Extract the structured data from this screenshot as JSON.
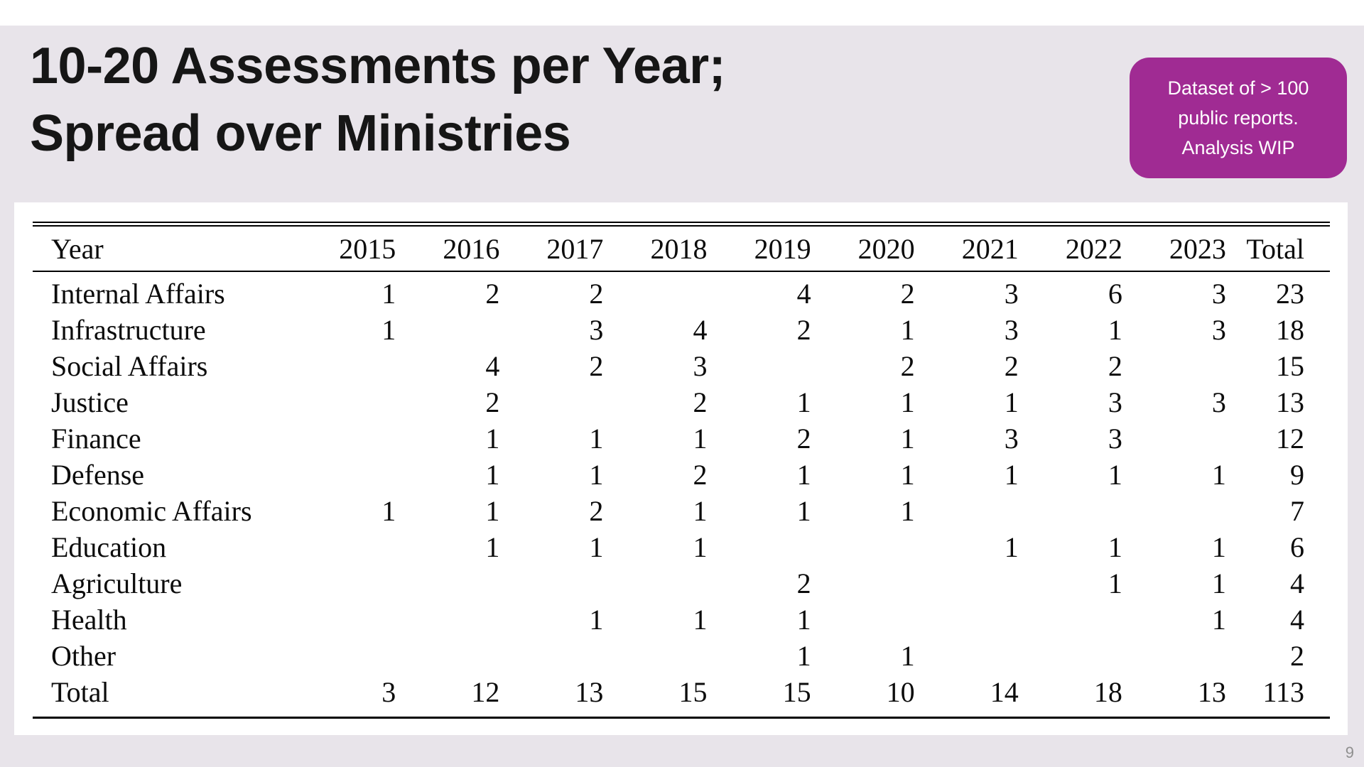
{
  "colors": {
    "background": "#e8e4ea",
    "panel": "#ffffff",
    "badge_bg": "#a02b93",
    "badge_text": "#ffffff",
    "title_text": "#161616",
    "page_number_text": "#8f8f8f"
  },
  "slide": {
    "title_line1": "10-20 Assessments per Year;",
    "title_line2": "Spread over Ministries",
    "badge": {
      "lines": [
        "Dataset of > 100",
        "public reports.",
        "Analysis WIP"
      ]
    },
    "page_number": "9"
  },
  "chart_data": {
    "type": "table",
    "title": "10-20 Assessments per Year; Spread over Ministries",
    "columns": [
      "Year",
      "2015",
      "2016",
      "2017",
      "2018",
      "2019",
      "2020",
      "2021",
      "2022",
      "2023",
      "Total"
    ],
    "rows": [
      {
        "label": "Internal Affairs",
        "values": [
          "1",
          "2",
          "2",
          "",
          "4",
          "2",
          "3",
          "6",
          "3",
          "23"
        ]
      },
      {
        "label": "Infrastructure",
        "values": [
          "1",
          "",
          "3",
          "4",
          "2",
          "1",
          "3",
          "1",
          "3",
          "18"
        ]
      },
      {
        "label": "Social Affairs",
        "values": [
          "",
          "4",
          "2",
          "3",
          "",
          "2",
          "2",
          "2",
          "",
          "15"
        ]
      },
      {
        "label": "Justice",
        "values": [
          "",
          "2",
          "",
          "2",
          "1",
          "1",
          "1",
          "3",
          "3",
          "13"
        ]
      },
      {
        "label": "Finance",
        "values": [
          "",
          "1",
          "1",
          "1",
          "2",
          "1",
          "3",
          "3",
          "",
          "12"
        ]
      },
      {
        "label": "Defense",
        "values": [
          "",
          "1",
          "1",
          "2",
          "1",
          "1",
          "1",
          "1",
          "1",
          "9"
        ]
      },
      {
        "label": "Economic Affairs",
        "values": [
          "1",
          "1",
          "2",
          "1",
          "1",
          "1",
          "",
          "",
          "",
          "7"
        ]
      },
      {
        "label": "Education",
        "values": [
          "",
          "1",
          "1",
          "1",
          "",
          "",
          "1",
          "1",
          "1",
          "6"
        ]
      },
      {
        "label": "Agriculture",
        "values": [
          "",
          "",
          "",
          "",
          "2",
          "",
          "",
          "1",
          "1",
          "4"
        ]
      },
      {
        "label": "Health",
        "values": [
          "",
          "",
          "1",
          "1",
          "1",
          "",
          "",
          "",
          "1",
          "4"
        ]
      },
      {
        "label": "Other",
        "values": [
          "",
          "",
          "",
          "",
          "1",
          "1",
          "",
          "",
          "",
          "2"
        ]
      },
      {
        "label": "Total",
        "values": [
          "3",
          "12",
          "13",
          "15",
          "15",
          "10",
          "14",
          "18",
          "13",
          "113"
        ]
      }
    ]
  }
}
